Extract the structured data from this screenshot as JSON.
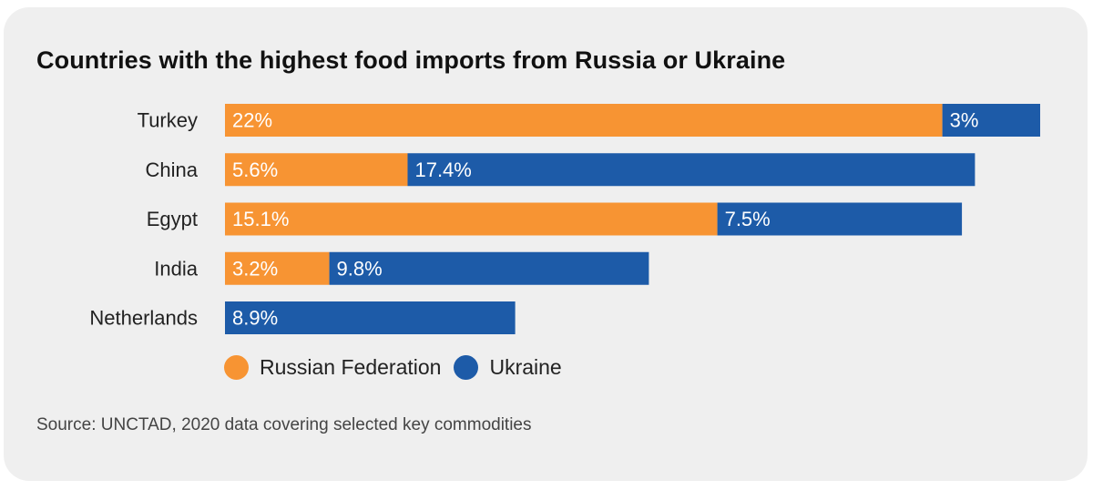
{
  "colors": {
    "background": "#efefef",
    "russia": "#f79433",
    "ukraine": "#1d5ba8",
    "bar_label": "#ffffff"
  },
  "legend": {
    "russia": "Russian Federation",
    "ukraine": "Ukraine"
  },
  "source": "Source: UNCTAD, 2020 data covering selected key commodities",
  "chart_data": {
    "type": "bar",
    "orientation": "horizontal",
    "stacked": true,
    "title": "Countries with the highest food imports from Russia or Ukraine",
    "xlabel": "",
    "ylabel": "",
    "xlim": [
      0,
      25
    ],
    "grid": false,
    "legend_position": "bottom",
    "categories": [
      "Turkey",
      "China",
      "Egypt",
      "India",
      "Netherlands"
    ],
    "series": [
      {
        "name": "Russian Federation",
        "color": "#f79433",
        "values": [
          22,
          5.6,
          15.1,
          3.2,
          0
        ],
        "labels": [
          "22%",
          "5.6%",
          "15.1%",
          "3.2%",
          ""
        ]
      },
      {
        "name": "Ukraine",
        "color": "#1d5ba8",
        "values": [
          3,
          17.4,
          7.5,
          9.8,
          8.9
        ],
        "labels": [
          "3%",
          "17.4%",
          "7.5%",
          "9.8%",
          "8.9%"
        ]
      }
    ]
  }
}
